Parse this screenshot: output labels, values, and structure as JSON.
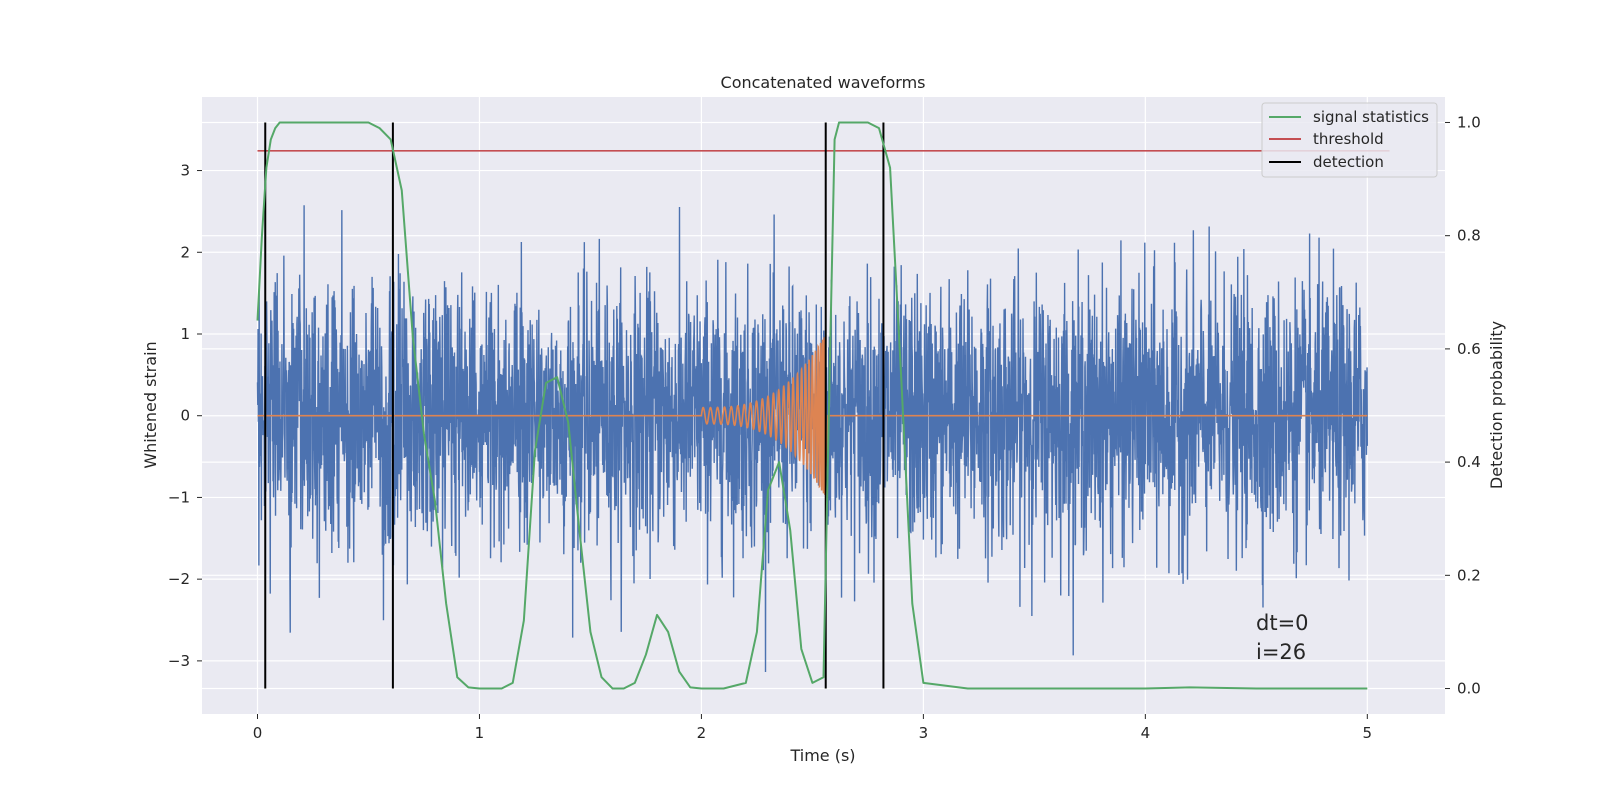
{
  "chart_data": {
    "type": "line",
    "title": "Concatenated waveforms",
    "xlabel": "Time (s)",
    "ylabel": "Whitened strain",
    "y2label": "Detection probability",
    "xlim": [
      -0.25,
      5.35
    ],
    "ylim": [
      -3.65,
      3.9
    ],
    "y2lim": [
      -0.045,
      1.045
    ],
    "xticks": [
      0,
      1,
      2,
      3,
      4,
      5
    ],
    "yticks": [
      -3,
      -2,
      -1,
      0,
      1,
      2,
      3
    ],
    "y2ticks": [
      0.0,
      0.2,
      0.4,
      0.6,
      0.8,
      1.0
    ],
    "xtick_labels": [
      "0",
      "1",
      "2",
      "3",
      "4",
      "5"
    ],
    "ytick_labels": [
      "−3",
      "−2",
      "−1",
      "0",
      "1",
      "2",
      "3"
    ],
    "y2tick_labels": [
      "0.0",
      "0.2",
      "0.4",
      "0.6",
      "0.8",
      "1.0"
    ],
    "grid": true,
    "legend_position": "top-right",
    "legend": [
      {
        "label": "signal statistics",
        "color": "#55a868"
      },
      {
        "label": "threshold",
        "color": "#c44e52"
      },
      {
        "label": "detection",
        "color": "#000000"
      }
    ],
    "colors": {
      "strain": "#4c72b0",
      "injection": "#dd8452",
      "signal": "#55a868",
      "threshold": "#c44e52",
      "detection": "#000000",
      "background": "#eaeaf2"
    },
    "strain_noise": {
      "t_start": 0,
      "t_end": 5,
      "std": 0.78,
      "max_abs": 3.3
    },
    "injection": {
      "t_start": 2.0,
      "t_merger": 2.56,
      "amp_start": 0.1,
      "amp_peak": 1.0
    },
    "threshold": {
      "value": 0.95,
      "x_start": 0,
      "x_end": 5.1
    },
    "detections": [
      0.035,
      0.61,
      2.56,
      2.82
    ],
    "signal_statistics": {
      "x": [
        0,
        0.02,
        0.04,
        0.06,
        0.08,
        0.1,
        0.15,
        0.3,
        0.45,
        0.5,
        0.55,
        0.6,
        0.65,
        0.7,
        0.75,
        0.8,
        0.85,
        0.9,
        0.95,
        1.0,
        1.1,
        1.15,
        1.2,
        1.25,
        1.3,
        1.35,
        1.4,
        1.45,
        1.5,
        1.55,
        1.6,
        1.65,
        1.7,
        1.75,
        1.8,
        1.85,
        1.9,
        1.95,
        2.0,
        2.1,
        2.2,
        2.25,
        2.3,
        2.35,
        2.4,
        2.45,
        2.5,
        2.55,
        2.58,
        2.6,
        2.62,
        2.65,
        2.7,
        2.75,
        2.8,
        2.85,
        2.9,
        2.95,
        3.0,
        3.2,
        3.5,
        4.0,
        4.2,
        4.5,
        5.0
      ],
      "y": [
        0.65,
        0.8,
        0.92,
        0.97,
        0.99,
        1.0,
        1.0,
        1.0,
        1.0,
        1.0,
        0.99,
        0.97,
        0.88,
        0.62,
        0.45,
        0.33,
        0.15,
        0.02,
        0.002,
        0.0,
        0.0,
        0.01,
        0.12,
        0.42,
        0.54,
        0.55,
        0.47,
        0.28,
        0.1,
        0.02,
        0.0,
        0.0,
        0.01,
        0.06,
        0.13,
        0.1,
        0.03,
        0.002,
        0.0,
        0.0,
        0.01,
        0.1,
        0.35,
        0.4,
        0.28,
        0.07,
        0.01,
        0.02,
        0.6,
        0.97,
        1.0,
        1.0,
        1.0,
        1.0,
        0.99,
        0.92,
        0.55,
        0.15,
        0.01,
        0.0,
        0.0,
        0.0,
        0.002,
        0.0,
        0.0
      ]
    },
    "annotations": [
      "dt=0",
      "i=26"
    ]
  }
}
